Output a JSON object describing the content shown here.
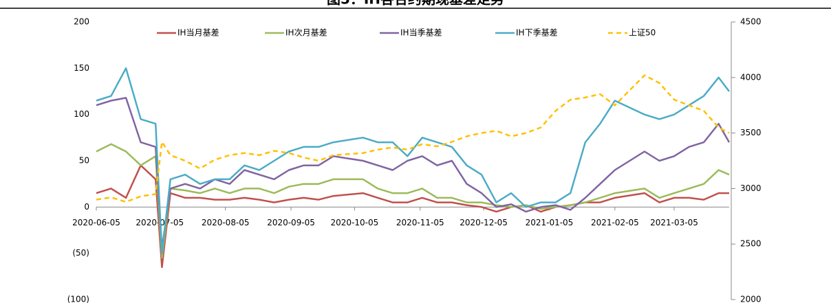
{
  "chart_data": {
    "type": "line",
    "title": "图5：IH各合约期现基差走势",
    "x": [
      "2020-06-05",
      "2020-06-12",
      "2020-06-19",
      "2020-06-26",
      "2020-07-03",
      "2020-07-06",
      "2020-07-10",
      "2020-07-17",
      "2020-07-24",
      "2020-07-31",
      "2020-08-07",
      "2020-08-14",
      "2020-08-21",
      "2020-08-28",
      "2020-09-04",
      "2020-09-11",
      "2020-09-18",
      "2020-09-25",
      "2020-10-09",
      "2020-10-16",
      "2020-10-23",
      "2020-10-30",
      "2020-11-06",
      "2020-11-13",
      "2020-11-20",
      "2020-11-27",
      "2020-12-04",
      "2020-12-11",
      "2020-12-18",
      "2020-12-25",
      "2021-01-01",
      "2021-01-08",
      "2021-01-15",
      "2021-01-22",
      "2021-01-29",
      "2021-02-05",
      "2021-02-19",
      "2021-02-26",
      "2021-03-05",
      "2021-03-12",
      "2021-03-19",
      "2021-03-26",
      "2021-03-31"
    ],
    "xlim": [
      "2020-06-05",
      "2021-03-31"
    ],
    "xticks": [
      "2020-06-05",
      "2020-07-05",
      "2020-08-05",
      "2020-09-05",
      "2020-10-05",
      "2020-11-05",
      "2020-12-05",
      "2021-01-05",
      "2021-02-05",
      "2021-03-05"
    ],
    "series": [
      {
        "name": "IH当月基差",
        "color": "#c0504d",
        "values": [
          15,
          20,
          10,
          45,
          30,
          -65,
          15,
          10,
          10,
          8,
          8,
          10,
          8,
          5,
          8,
          10,
          8,
          12,
          15,
          10,
          5,
          5,
          10,
          5,
          5,
          2,
          0,
          -5,
          0,
          2,
          -5,
          0,
          2,
          5,
          5,
          10,
          15,
          5,
          10,
          10,
          8,
          15,
          15
        ]
      },
      {
        "name": "IH次月基差",
        "color": "#9bbb59",
        "values": [
          60,
          68,
          60,
          45,
          55,
          -55,
          20,
          18,
          15,
          20,
          15,
          20,
          20,
          15,
          22,
          25,
          25,
          30,
          30,
          20,
          15,
          15,
          20,
          10,
          10,
          5,
          5,
          2,
          0,
          2,
          -2,
          0,
          2,
          5,
          10,
          15,
          20,
          10,
          15,
          20,
          25,
          40,
          35
        ]
      },
      {
        "name": "IH当季基差",
        "color": "#8064a2",
        "values": [
          110,
          115,
          118,
          70,
          65,
          -45,
          20,
          25,
          20,
          30,
          25,
          40,
          35,
          30,
          40,
          45,
          45,
          55,
          50,
          45,
          40,
          50,
          55,
          45,
          50,
          25,
          15,
          0,
          3,
          -5,
          0,
          2,
          -3,
          10,
          25,
          40,
          60,
          50,
          55,
          65,
          70,
          90,
          70
        ]
      },
      {
        "name": "IH下季基差",
        "color": "#4bacc6",
        "values": [
          115,
          120,
          150,
          95,
          90,
          -50,
          30,
          35,
          25,
          30,
          30,
          45,
          40,
          50,
          60,
          65,
          65,
          70,
          75,
          70,
          70,
          55,
          75,
          70,
          65,
          45,
          35,
          5,
          15,
          0,
          5,
          5,
          15,
          70,
          90,
          115,
          100,
          95,
          100,
          110,
          120,
          140,
          125
        ]
      },
      {
        "name": "上证50",
        "color": "#ffc000",
        "axis": "y2",
        "dashed": true,
        "values": [
          2900,
          2920,
          2880,
          2930,
          2950,
          3420,
          3300,
          3250,
          3180,
          3260,
          3300,
          3320,
          3300,
          3340,
          3320,
          3280,
          3250,
          3300,
          3320,
          3350,
          3370,
          3350,
          3400,
          3380,
          3420,
          3470,
          3500,
          3520,
          3470,
          3500,
          3550,
          3700,
          3800,
          3820,
          3850,
          3750,
          4020,
          3950,
          3800,
          3750,
          3700,
          3550,
          3500
        ]
      }
    ],
    "ylim": [
      -100,
      200
    ],
    "yticks": [
      {
        "value": -100,
        "label": "(100)"
      },
      {
        "value": -50,
        "label": "(50)"
      },
      0,
      50,
      100,
      150,
      200
    ],
    "y_negative_label_color": "#ff0000",
    "y2lim": [
      2000,
      4500
    ],
    "y2ticks": [
      2000,
      2500,
      3000,
      3500,
      4000,
      4500
    ],
    "legend": "top"
  }
}
